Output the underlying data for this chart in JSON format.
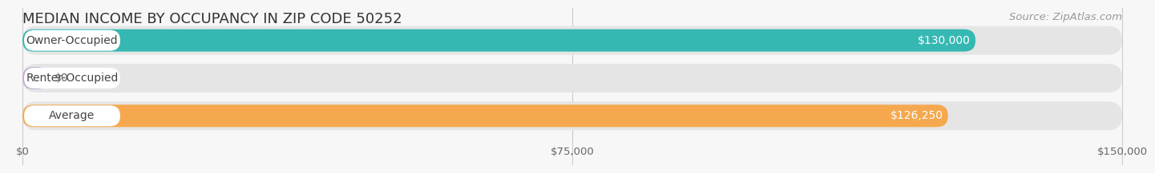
{
  "title": "MEDIAN INCOME BY OCCUPANCY IN ZIP CODE 50252",
  "source": "Source: ZipAtlas.com",
  "categories": [
    "Owner-Occupied",
    "Renter-Occupied",
    "Average"
  ],
  "values": [
    130000,
    0,
    126250
  ],
  "bar_colors": [
    "#35b8b2",
    "#c4aed4",
    "#f5a84e"
  ],
  "value_labels": [
    "$130,000",
    "$0",
    "$126,250"
  ],
  "xlim": [
    0,
    150000
  ],
  "xticks": [
    0,
    75000,
    150000
  ],
  "xticklabels": [
    "$0",
    "$75,000",
    "$150,000"
  ],
  "background_color": "#f7f7f7",
  "bar_bg_color": "#e5e5e5",
  "title_fontsize": 13,
  "source_fontsize": 9.5,
  "label_fontsize": 10,
  "value_fontsize": 10,
  "tick_fontsize": 9.5,
  "renter_stub_value": 3500
}
